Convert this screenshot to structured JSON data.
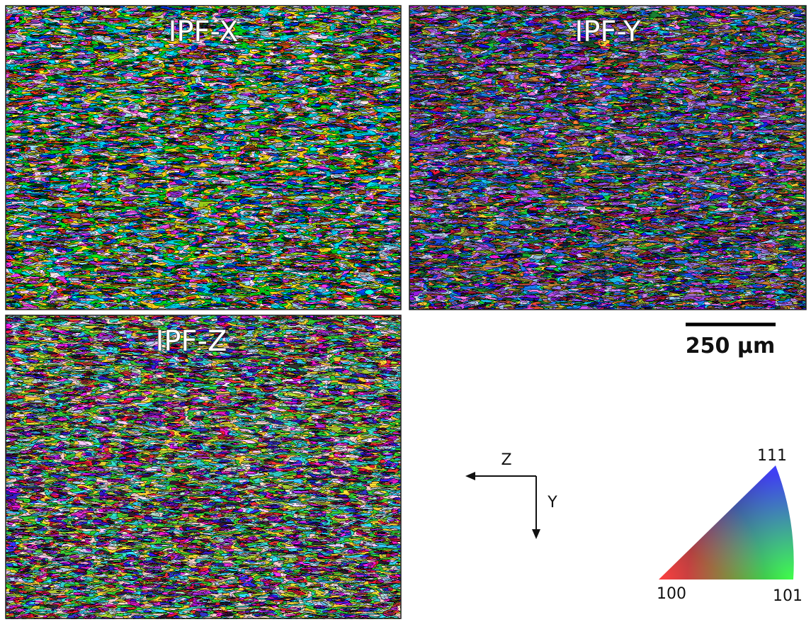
{
  "panels": [
    {
      "label": "IPF-X"
    },
    {
      "label": "IPF-Y"
    },
    {
      "label": "IPF-Z"
    }
  ],
  "scale_bar": {
    "label": "250 µm"
  },
  "axes": {
    "horizontal": "Z",
    "vertical": "Y"
  },
  "ipf_key": {
    "corners": [
      "100",
      "111",
      "101"
    ]
  }
}
